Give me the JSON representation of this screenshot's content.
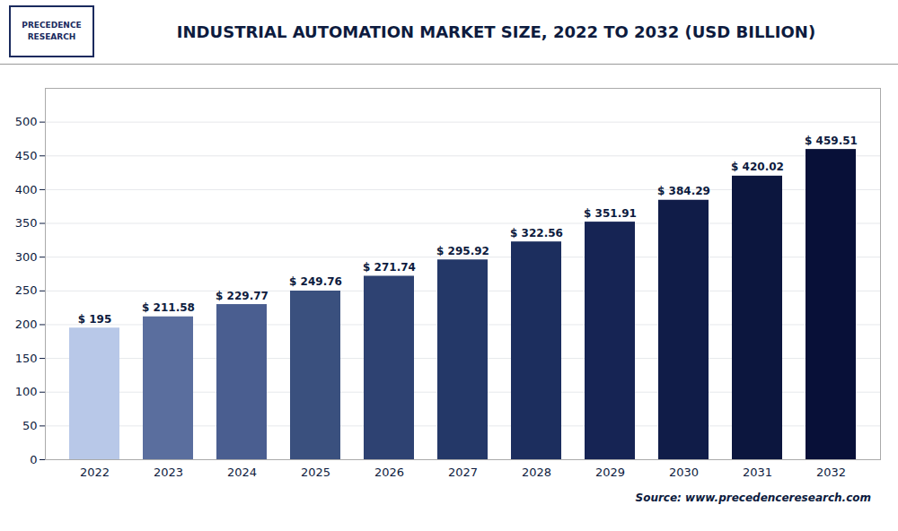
{
  "chart_data": {
    "type": "bar",
    "title": "INDUSTRIAL AUTOMATION MARKET SIZE, 2022 TO 2032 (USD BILLION)",
    "categories": [
      "2022",
      "2023",
      "2024",
      "2025",
      "2026",
      "2027",
      "2028",
      "2029",
      "2030",
      "2031",
      "2032"
    ],
    "values": [
      195,
      211.58,
      229.77,
      249.76,
      271.74,
      295.92,
      322.56,
      351.91,
      384.29,
      420.02,
      459.51
    ],
    "value_labels": [
      "$ 195",
      "$ 211.58",
      "$ 229.77",
      "$ 249.76",
      "$ 271.74",
      "$ 295.92",
      "$ 322.56",
      "$ 351.91",
      "$ 384.29",
      "$ 420.02",
      "$ 459.51"
    ],
    "colors": [
      "#b8c8e8",
      "#5a6e9e",
      "#4a5e90",
      "#3a507e",
      "#2e4272",
      "#243868",
      "#1c2e5e",
      "#162454",
      "#101c48",
      "#0c163e",
      "#081038"
    ],
    "ylim": [
      0,
      550
    ],
    "yticks": [
      0,
      50,
      100,
      150,
      200,
      250,
      300,
      350,
      400,
      450,
      500
    ],
    "grid": true,
    "data_labels": true,
    "logo": [
      "PRECEDENCE",
      "RESEARCH"
    ],
    "source": "Source: www.precedenceresearch.com"
  }
}
